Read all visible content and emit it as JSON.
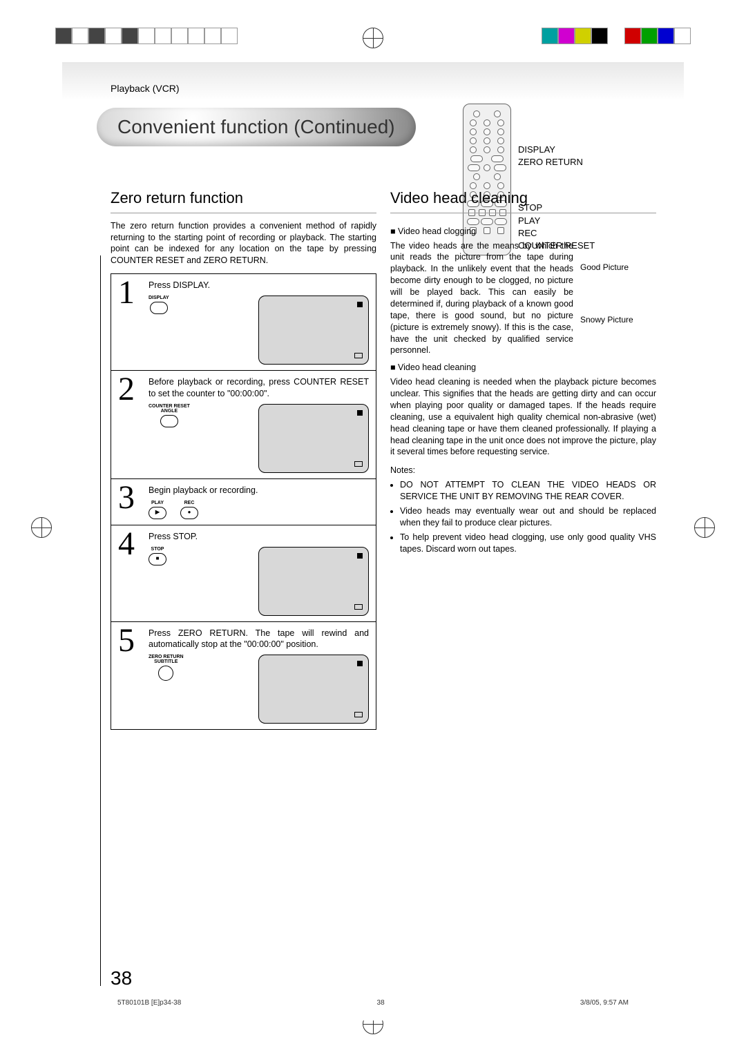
{
  "print": {
    "colors": [
      "#00a0a0",
      "#d000d0",
      "#d0d000",
      "#000000",
      "#d00000",
      "#00a000",
      "#0000d0",
      "#ffffff"
    ]
  },
  "header": {
    "section": "Playback (VCR)",
    "title": "Convenient function (Continued)"
  },
  "remote": {
    "labels": [
      "DISPLAY",
      "ZERO RETURN",
      "STOP",
      "PLAY",
      "REC",
      "COUNTER RESET"
    ]
  },
  "left": {
    "title": "Zero return function",
    "intro": "The zero return function provides a convenient method of rapidly returning to the starting point of recording or playback. The starting point can be indexed for any location on the tape by pressing COUNTER RESET and ZERO RETURN.",
    "steps": [
      {
        "num": "1",
        "text": "Press DISPLAY.",
        "buttons": [
          {
            "label": "DISPLAY",
            "shape": "pill"
          }
        ],
        "screen": true
      },
      {
        "num": "2",
        "text": "Before playback or recording, press COUNTER RESET to set the counter to \"00:00:00\".",
        "buttons": [
          {
            "label": "COUNTER RESET\nANGLE",
            "shape": "pill"
          }
        ],
        "screen": true
      },
      {
        "num": "3",
        "text": "Begin playback or recording.",
        "buttons": [
          {
            "label": "PLAY",
            "shape": "pill",
            "glyph": "▶"
          },
          {
            "label": "REC",
            "shape": "pill",
            "glyph": "●"
          }
        ],
        "screen": false
      },
      {
        "num": "4",
        "text": "Press STOP.",
        "buttons": [
          {
            "label": "STOP",
            "shape": "pill",
            "glyph": "■"
          }
        ],
        "screen": true
      },
      {
        "num": "5",
        "text": "Press ZERO RETURN. The tape will rewind and automatically stop at the \"00:00:00\" position.",
        "buttons": [
          {
            "label": "ZERO RETURN\nSUBTITLE",
            "shape": "round"
          }
        ],
        "screen": true
      }
    ]
  },
  "right": {
    "title": "Video head cleaning",
    "clog_h": "Video head clogging",
    "clog_body": "The video heads are the means by which the unit reads the picture from the tape during playback. In the unlikely event that the heads become dirty enough to be clogged, no picture will be played back. This can easily be determined if, during playback of a known good tape, there is good sound, but no picture (picture is extremely snowy). If this is the case, have the unit checked by qualified service personnel.",
    "good_pic": "Good Picture",
    "snowy_pic": "Snowy Picture",
    "clean_h": "Video head cleaning",
    "clean_body": "Video head cleaning is needed when the playback picture becomes unclear. This signifies that the heads are getting dirty and can occur when playing poor quality or damaged tapes. If the heads require cleaning, use a equivalent high quality chemical non-abrasive (wet) head cleaning tape or have them cleaned professionally. If playing a head cleaning tape in the unit once does not improve the picture, play it several times before requesting service.",
    "notes_label": "Notes:",
    "notes": [
      "DO NOT ATTEMPT TO CLEAN THE VIDEO HEADS OR SERVICE THE UNIT BY REMOVING THE REAR COVER.",
      "Video heads may eventually wear out and should be replaced when they fail to produce clear pictures.",
      "To help prevent video head clogging, use only good quality VHS tapes. Discard worn out tapes."
    ]
  },
  "page_number": "38",
  "footer": {
    "file": "5T80101B [E]p34-38",
    "page": "38",
    "date": "3/8/05, 9:57 AM"
  }
}
